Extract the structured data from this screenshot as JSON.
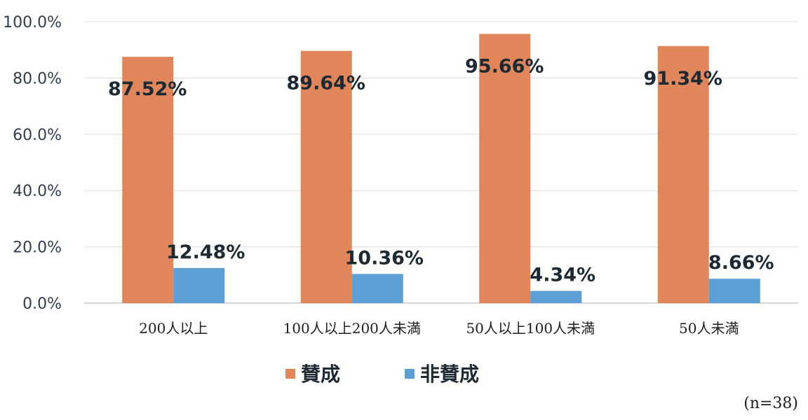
{
  "chart_data": {
    "type": "bar",
    "categories": [
      "200人以上",
      "100人以上200人未満",
      "50人以上100人未満",
      "50人未満"
    ],
    "series": [
      {
        "name": "賛成",
        "values": [
          87.52,
          89.64,
          95.66,
          91.34
        ],
        "labels": [
          "87.52%",
          "89.64%",
          "95.66%",
          "91.34%"
        ],
        "color": "#e0865a"
      },
      {
        "name": "非賛成",
        "values": [
          12.48,
          10.36,
          4.34,
          8.66
        ],
        "labels": [
          "12.48%",
          "10.36%",
          "4.34%",
          "8.66%"
        ],
        "color": "#5b9fd4"
      }
    ],
    "ylim": [
      0,
      100
    ],
    "yticks": [
      "0.0%",
      "20.0%",
      "40.0%",
      "60.0%",
      "80.0%",
      "100.0%"
    ],
    "grid": true,
    "legend": "bottom",
    "note": "(n=38)"
  }
}
